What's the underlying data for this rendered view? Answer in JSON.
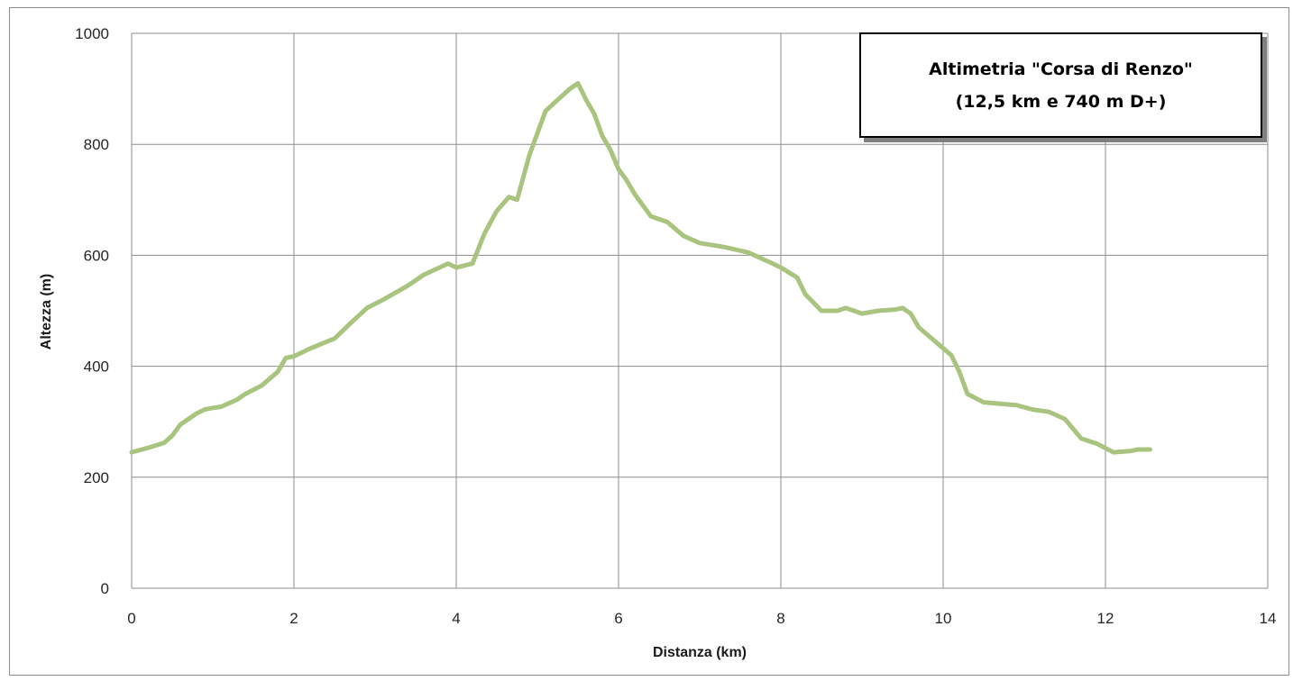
{
  "chart_data": {
    "type": "line",
    "title": "Altimetria \"Corsa di Renzo\"",
    "subtitle": "(12,5 km e 740 m D+)",
    "xlabel": "Distanza (km)",
    "ylabel": "Altezza (m)",
    "xlim": [
      0,
      14
    ],
    "ylim": [
      0,
      1000
    ],
    "x_ticks": [
      0,
      2,
      4,
      6,
      8,
      10,
      12,
      14
    ],
    "y_ticks": [
      0,
      200,
      400,
      600,
      800,
      1000
    ],
    "grid": true,
    "legend": "none",
    "line_color": "#a9c47f",
    "series": [
      {
        "x": [
          0,
          0.2,
          0.4,
          0.5,
          0.6,
          0.8,
          0.9,
          1.0,
          1.1,
          1.3,
          1.4,
          1.6,
          1.8,
          1.9,
          2.0,
          2.2,
          2.5,
          2.7,
          2.9,
          3.1,
          3.4,
          3.6,
          3.9,
          4.0,
          4.2,
          4.35,
          4.5,
          4.65,
          4.75,
          4.9,
          5.0,
          5.1,
          5.25,
          5.4,
          5.5,
          5.6,
          5.7,
          5.8,
          5.9,
          6.0,
          6.1,
          6.2,
          6.3,
          6.4,
          6.6,
          6.8,
          7.0,
          7.3,
          7.6,
          7.9,
          8.0,
          8.2,
          8.3,
          8.5,
          8.7,
          8.8,
          9.0,
          9.2,
          9.4,
          9.5,
          9.6,
          9.7,
          9.9,
          10.1,
          10.2,
          10.3,
          10.5,
          10.9,
          11.1,
          11.3,
          11.5,
          11.7,
          11.9,
          12.1,
          12.3,
          12.4,
          12.55
        ],
        "y": [
          245,
          253,
          262,
          275,
          295,
          315,
          322,
          325,
          327,
          340,
          350,
          365,
          390,
          415,
          418,
          432,
          450,
          478,
          505,
          520,
          545,
          565,
          585,
          578,
          585,
          640,
          680,
          705,
          700,
          780,
          820,
          860,
          880,
          900,
          910,
          880,
          855,
          815,
          790,
          755,
          735,
          710,
          690,
          670,
          660,
          635,
          622,
          615,
          605,
          585,
          578,
          560,
          530,
          500,
          500,
          505,
          495,
          500,
          502,
          505,
          495,
          470,
          445,
          420,
          390,
          350,
          335,
          330,
          322,
          318,
          305,
          270,
          260,
          245,
          247,
          250,
          250
        ]
      }
    ]
  }
}
